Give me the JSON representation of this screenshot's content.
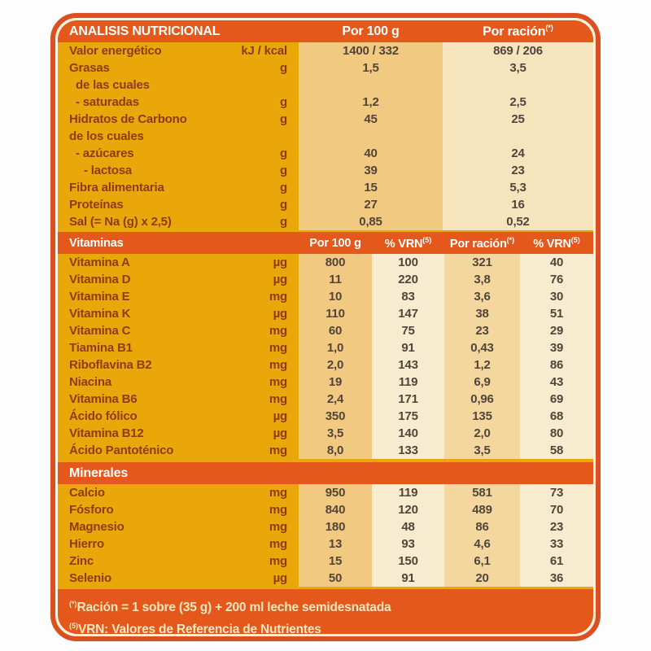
{
  "main_header": {
    "title": "ANALISIS NUTRICIONAL",
    "per100": "Por 100 g",
    "racion": "Por ración",
    "racion_sup": "(*)"
  },
  "macros": {
    "rows": [
      {
        "label": "Valor energético",
        "unit": "kJ / kcal",
        "per100": "1400 / 332",
        "racion": "869 / 206",
        "indent": 0
      },
      {
        "label": "Grasas",
        "unit": "g",
        "per100": "1,5",
        "racion": "3,5",
        "indent": 0
      },
      {
        "label": "de las cuales",
        "unit": "",
        "per100": "",
        "racion": "",
        "indent": 1
      },
      {
        "label": "- saturadas",
        "unit": "g",
        "per100": "1,2",
        "racion": "2,5",
        "indent": 1
      },
      {
        "label": "Hidratos de Carbono",
        "unit": "g",
        "per100": "45",
        "racion": "25",
        "indent": 0
      },
      {
        "label": "de los cuales",
        "unit": "",
        "per100": "",
        "racion": "",
        "indent": 0
      },
      {
        "label": "- azúcares",
        "unit": "g",
        "per100": "40",
        "racion": "24",
        "indent": 1
      },
      {
        "label": "- lactosa",
        "unit": "g",
        "per100": "39",
        "racion": "23",
        "indent": 2
      },
      {
        "label": "Fibra alimentaria",
        "unit": "g",
        "per100": "15",
        "racion": "5,3",
        "indent": 0
      },
      {
        "label": "Proteínas",
        "unit": "g",
        "per100": "27",
        "racion": "16",
        "indent": 0
      },
      {
        "label": "Sal (= Na (g) x 2,5)",
        "unit": "g",
        "per100": "0,85",
        "racion": "0,52",
        "indent": 0
      }
    ]
  },
  "vitamins": {
    "band_label": "Vitaminas",
    "headers": {
      "per100": "Por 100 g",
      "vrn1": "% VRN",
      "vrn1_sup": "(5)",
      "racion": "Por ración",
      "racion_sup": "(*)",
      "vrn2": "% VRN",
      "vrn2_sup": "(5)"
    },
    "rows": [
      {
        "label": "Vitamina A",
        "unit": "µg",
        "per100": "800",
        "vrn100": "100",
        "racion": "321",
        "vrnracion": "40",
        "indent": 0
      },
      {
        "label": "Vitamina D",
        "unit": "µg",
        "per100": "11",
        "vrn100": "220",
        "racion": "3,8",
        "vrnracion": "76",
        "indent": 0
      },
      {
        "label": "Vitamina E",
        "unit": "mg",
        "per100": "10",
        "vrn100": "83",
        "racion": "3,6",
        "vrnracion": "30",
        "indent": 0
      },
      {
        "label": "Vitamina K",
        "unit": "µg",
        "per100": "110",
        "vrn100": "147",
        "racion": "38",
        "vrnracion": "51",
        "indent": 0
      },
      {
        "label": "Vitamina C",
        "unit": "mg",
        "per100": "60",
        "vrn100": "75",
        "racion": "23",
        "vrnracion": "29",
        "indent": 0
      },
      {
        "label": "Tiamina B1",
        "unit": "mg",
        "per100": "1,0",
        "vrn100": "91",
        "racion": "0,43",
        "vrnracion": "39",
        "indent": 0
      },
      {
        "label": "Riboflavina B2",
        "unit": "mg",
        "per100": "2,0",
        "vrn100": "143",
        "racion": "1,2",
        "vrnracion": "86",
        "indent": 0
      },
      {
        "label": "Niacina",
        "unit": "mg",
        "per100": "19",
        "vrn100": "119",
        "racion": "6,9",
        "vrnracion": "43",
        "indent": 0
      },
      {
        "label": "Vitamina B6",
        "unit": "mg",
        "per100": "2,4",
        "vrn100": "171",
        "racion": "0,96",
        "vrnracion": "69",
        "indent": 0
      },
      {
        "label": "Ácido fólico",
        "unit": "µg",
        "per100": "350",
        "vrn100": "175",
        "racion": "135",
        "vrnracion": "68",
        "indent": 0
      },
      {
        "label": "Vitamina B12",
        "unit": "µg",
        "per100": "3,5",
        "vrn100": "140",
        "racion": "2,0",
        "vrnracion": "80",
        "indent": 0
      },
      {
        "label": "Ácido Pantoténico",
        "unit": "mg",
        "per100": "8,0",
        "vrn100": "133",
        "racion": "3,5",
        "vrnracion": "58",
        "indent": 0
      }
    ]
  },
  "minerals": {
    "band_label": "Minerales",
    "rows": [
      {
        "label": "Calcio",
        "unit": "mg",
        "per100": "950",
        "vrn100": "119",
        "racion": "581",
        "vrnracion": "73",
        "indent": 0
      },
      {
        "label": "Fósforo",
        "unit": "mg",
        "per100": "840",
        "vrn100": "120",
        "racion": "489",
        "vrnracion": "70",
        "indent": 0
      },
      {
        "label": "Magnesio",
        "unit": "mg",
        "per100": "180",
        "vrn100": "48",
        "racion": "86",
        "vrnracion": "23",
        "indent": 0
      },
      {
        "label": "Hierro",
        "unit": "mg",
        "per100": "13",
        "vrn100": "93",
        "racion": "4,6",
        "vrnracion": "33",
        "indent": 0
      },
      {
        "label": "Zinc",
        "unit": "mg",
        "per100": "15",
        "vrn100": "150",
        "racion": "6,1",
        "vrnracion": "61",
        "indent": 0
      },
      {
        "label": "Selenio",
        "unit": "µg",
        "per100": "50",
        "vrn100": "91",
        "racion": "20",
        "vrnracion": "36",
        "indent": 0
      }
    ]
  },
  "footnotes": [
    {
      "sup": "(*)",
      "text": "Ración = 1 sobre (35 g) + 200 ml leche semidesnatada"
    },
    {
      "sup": "(5)",
      "text": "VRN: Valores de Referencia de Nutrientes"
    }
  ],
  "colors": {
    "band": "#e4581b",
    "border": "#d95120",
    "card_gap": "#f9f2e0",
    "gold": "#e9a70a",
    "tan": "#f2c981",
    "cream": "#f6e4bc",
    "tan2": "#f4d79e",
    "cream2": "#f8ecd0",
    "label_text": "#8c3c16",
    "value_text": "#51453a",
    "band_text": "#ffffff",
    "footnote_text": "#f8e7c2"
  }
}
